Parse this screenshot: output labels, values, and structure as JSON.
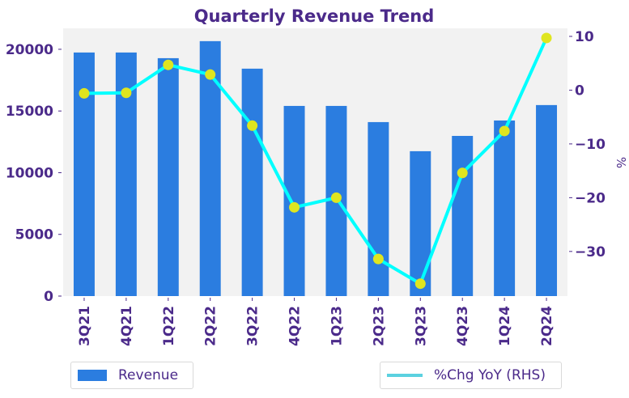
{
  "chart_data": {
    "type": "bar",
    "title": "Quarterly Revenue Trend",
    "categories": [
      "3Q21",
      "4Q21",
      "1Q22",
      "2Q22",
      "3Q22",
      "4Q22",
      "1Q23",
      "2Q23",
      "3Q23",
      "4Q23",
      "1Q24",
      "2Q24"
    ],
    "series": [
      {
        "name": "Revenue",
        "type": "bar",
        "axis": "left",
        "color": "#2b7de0",
        "values": [
          19740,
          19740,
          19280,
          20660,
          18430,
          15410,
          15410,
          14100,
          11740,
          12980,
          14230,
          15480
        ]
      },
      {
        "name": "%Chg YoY (RHS)",
        "type": "line",
        "axis": "right",
        "color": "#00ffff",
        "marker_color": "#dfe51f",
        "values": [
          -0.6,
          -0.5,
          4.7,
          2.9,
          -6.6,
          -21.8,
          -20.0,
          -31.4,
          -36.0,
          -15.4,
          -7.6,
          9.7
        ]
      }
    ],
    "xlabel": "",
    "ylabel": "",
    "y2label": "%",
    "ylim": [
      0,
      21700
    ],
    "y2lim": [
      -38.3,
      11.5
    ],
    "yticks": [
      0,
      5000,
      10000,
      15000,
      20000
    ],
    "y2ticks": [
      -30,
      -20,
      -10,
      0,
      10
    ],
    "y2tick_labels": [
      "−30",
      "−20",
      "−10",
      "0",
      "10"
    ],
    "grid": false,
    "background": "#f2f2f2",
    "legend": [
      {
        "label": "Revenue",
        "placement": "bottom-left"
      },
      {
        "label": "%Chg YoY (RHS)",
        "placement": "bottom-right"
      }
    ]
  }
}
